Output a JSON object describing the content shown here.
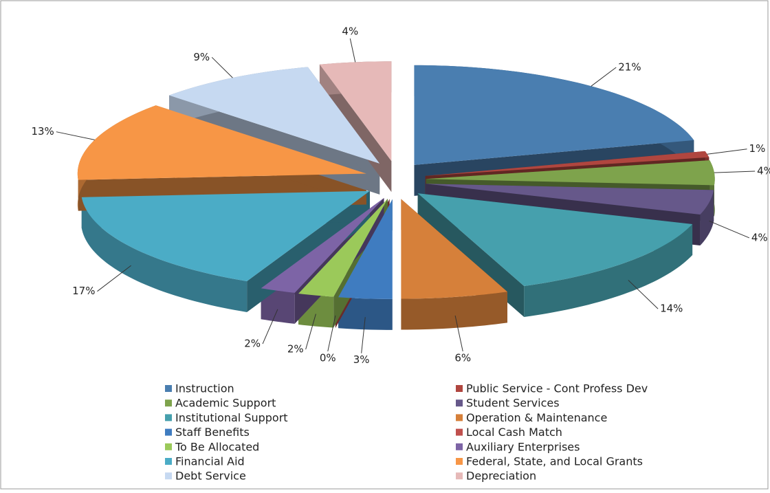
{
  "chart_data": {
    "type": "pie",
    "categories": [
      "Instruction",
      "Public Service - Cont Profess Dev",
      "Academic Support",
      "Student Services",
      "Institutional Support",
      "Operation & Maintenance",
      "Staff Benefits",
      "Local Cash Match",
      "To Be Allocated",
      "Auxiliary Enterprises",
      "Financial Aid",
      "Federal, State, and Local Grants",
      "Debt Service",
      "Depreciation"
    ],
    "values": [
      21,
      1,
      4,
      4,
      14,
      6,
      3,
      0,
      2,
      2,
      17,
      13,
      9,
      4
    ],
    "value_labels": [
      "21%",
      "1%",
      "4%",
      "4%",
      "14%",
      "6%",
      "3%",
      "0%",
      "2%",
      "2%",
      "17%",
      "13%",
      "9%",
      "4%"
    ],
    "colors": [
      "#4a7eb0",
      "#b0463f",
      "#7ea34c",
      "#66588a",
      "#46a0ad",
      "#d6803a",
      "#3f7cc0",
      "#c0504d",
      "#9bc95a",
      "#7d64a6",
      "#4bacc6",
      "#f79646",
      "#c6d9f1",
      "#e6b9b8"
    ],
    "legend": "bottom"
  }
}
